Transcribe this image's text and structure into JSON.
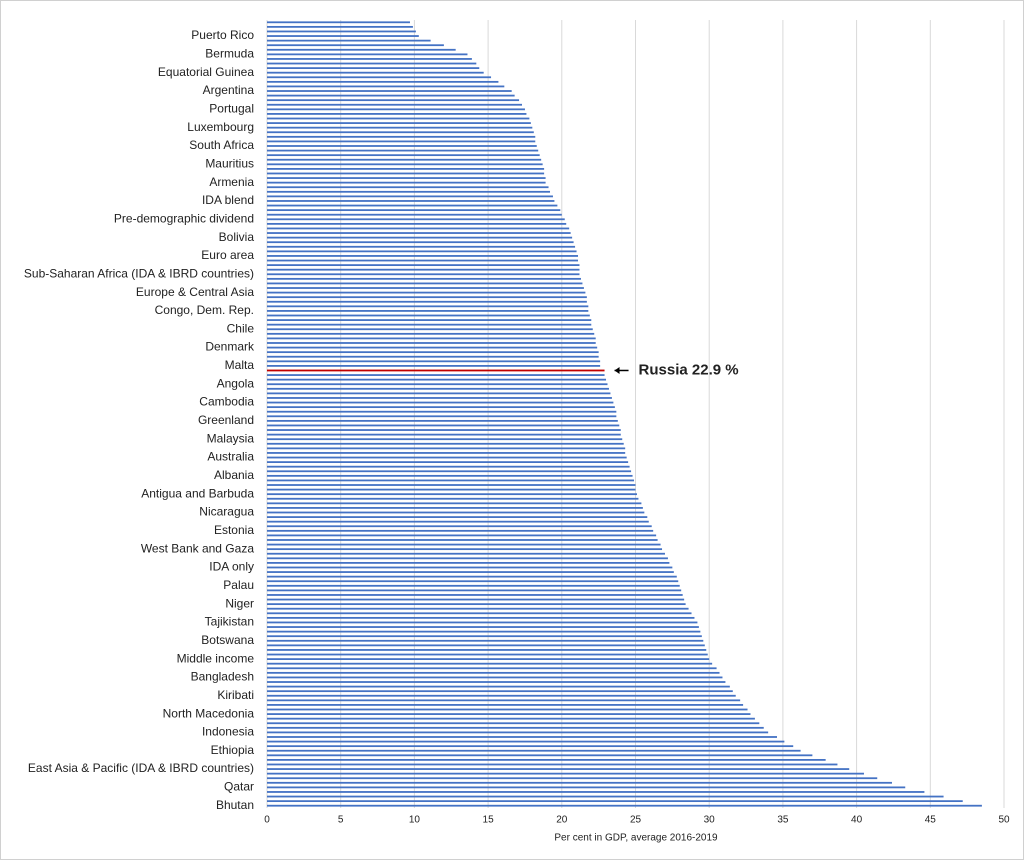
{
  "chart_data": {
    "type": "barh",
    "xlabel": "Per cent in GDP, average 2016-2019",
    "xlim": [
      0,
      50
    ],
    "xticks": [
      0,
      5,
      10,
      15,
      20,
      25,
      30,
      35,
      40,
      45,
      50
    ],
    "grid": true,
    "color": "#4472c4",
    "annotation": {
      "text": "Russia 22.9 %",
      "index": 76,
      "color": "#c00000"
    },
    "categories": [
      null,
      null,
      null,
      "Puerto Rico",
      null,
      null,
      null,
      "Bermuda",
      null,
      null,
      null,
      "Equatorial Guinea",
      null,
      null,
      null,
      "Argentina",
      null,
      null,
      null,
      "Portugal",
      null,
      null,
      null,
      "Luxembourg",
      null,
      null,
      null,
      "South Africa",
      null,
      null,
      null,
      "Mauritius",
      null,
      null,
      null,
      "Armenia",
      null,
      null,
      null,
      "IDA blend",
      null,
      null,
      null,
      "Pre-demographic dividend",
      null,
      null,
      null,
      "Bolivia",
      null,
      null,
      null,
      "Euro area",
      null,
      null,
      null,
      "Sub-Saharan Africa (IDA & IBRD countries)",
      null,
      null,
      null,
      "Europe & Central Asia",
      null,
      null,
      null,
      "Congo, Dem. Rep.",
      null,
      null,
      null,
      "Chile",
      null,
      null,
      null,
      "Denmark",
      null,
      null,
      null,
      "Malta",
      null,
      null,
      null,
      "Angola",
      null,
      null,
      null,
      "Cambodia",
      null,
      null,
      null,
      "Greenland",
      null,
      null,
      null,
      "Malaysia",
      null,
      null,
      null,
      "Australia",
      null,
      null,
      null,
      "Albania",
      null,
      null,
      null,
      "Antigua and Barbuda",
      null,
      null,
      null,
      "Nicaragua",
      null,
      null,
      null,
      "Estonia",
      null,
      null,
      null,
      "West Bank and Gaza",
      null,
      null,
      null,
      "IDA only",
      null,
      null,
      null,
      "Palau",
      null,
      null,
      null,
      "Niger",
      null,
      null,
      null,
      "Tajikistan",
      null,
      null,
      null,
      "Botswana",
      null,
      null,
      null,
      "Middle income",
      null,
      null,
      null,
      "Bangladesh",
      null,
      null,
      null,
      "Kiribati",
      null,
      null,
      null,
      "North Macedonia",
      null,
      null,
      null,
      "Indonesia",
      null,
      null,
      null,
      "Ethiopia",
      null,
      null,
      null,
      "East Asia & Pacific (IDA & IBRD countries)",
      null,
      null,
      null,
      "Qatar",
      null,
      null,
      null,
      "Bhutan"
    ],
    "values": [
      9.7,
      9.9,
      10.1,
      10.3,
      11.1,
      12.0,
      12.8,
      13.6,
      13.9,
      14.2,
      14.4,
      14.7,
      15.2,
      15.7,
      16.1,
      16.6,
      16.8,
      17.1,
      17.3,
      17.5,
      17.6,
      17.8,
      17.9,
      18.0,
      18.1,
      18.2,
      18.2,
      18.3,
      18.4,
      18.5,
      18.6,
      18.7,
      18.8,
      18.8,
      18.9,
      18.9,
      19.1,
      19.2,
      19.4,
      19.5,
      19.7,
      19.9,
      20.0,
      20.2,
      20.3,
      20.5,
      20.6,
      20.7,
      20.8,
      20.9,
      21.0,
      21.1,
      21.1,
      21.2,
      21.2,
      21.2,
      21.3,
      21.4,
      21.5,
      21.6,
      21.7,
      21.7,
      21.8,
      21.8,
      21.9,
      22.0,
      22.0,
      22.1,
      22.2,
      22.3,
      22.3,
      22.4,
      22.5,
      22.5,
      22.6,
      22.6,
      22.9,
      22.9,
      23.0,
      23.1,
      23.2,
      23.3,
      23.4,
      23.5,
      23.6,
      23.7,
      23.7,
      23.8,
      23.9,
      24.0,
      24.0,
      24.1,
      24.2,
      24.3,
      24.3,
      24.4,
      24.5,
      24.6,
      24.7,
      24.8,
      24.9,
      25.0,
      25.0,
      25.1,
      25.2,
      25.4,
      25.5,
      25.6,
      25.8,
      25.9,
      26.1,
      26.2,
      26.4,
      26.5,
      26.7,
      26.8,
      27.0,
      27.2,
      27.3,
      27.5,
      27.6,
      27.8,
      27.9,
      28.0,
      28.1,
      28.2,
      28.3,
      28.4,
      28.6,
      28.8,
      29.0,
      29.2,
      29.3,
      29.4,
      29.5,
      29.6,
      29.7,
      29.8,
      29.9,
      30.0,
      30.2,
      30.5,
      30.7,
      30.9,
      31.1,
      31.4,
      31.6,
      31.8,
      32.1,
      32.3,
      32.6,
      32.8,
      33.1,
      33.4,
      33.7,
      34.0,
      34.6,
      35.1,
      35.7,
      36.2,
      37.0,
      37.9,
      38.7,
      39.5,
      40.5,
      41.4,
      42.4,
      43.3,
      44.6,
      45.9,
      47.2,
      48.5
    ]
  }
}
